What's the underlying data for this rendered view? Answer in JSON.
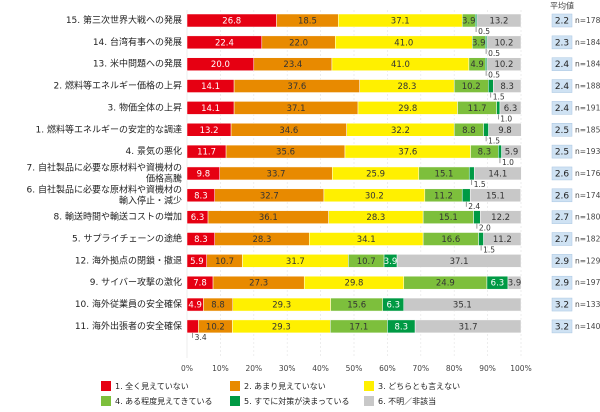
{
  "chart_data": {
    "type": "bar",
    "orientation": "horizontal-stacked-100",
    "avg_header": "平均値",
    "x_ticks": [
      "0%",
      "10%",
      "20%",
      "30%",
      "40%",
      "50%",
      "60%",
      "70%",
      "80%",
      "90%",
      "100%"
    ],
    "xlim": [
      0,
      100
    ],
    "series": [
      {
        "name": "1. 全く見えていない",
        "color": "#e60012",
        "label_color": "#ffffff"
      },
      {
        "name": "2. あまり見えていない",
        "color": "#e88a00",
        "label_color": "#333333"
      },
      {
        "name": "3. どちらとも言えない",
        "color": "#fff000",
        "label_color": "#333333"
      },
      {
        "name": "4. ある程度見えてきている",
        "color": "#7dbf3c",
        "label_color": "#333333"
      },
      {
        "name": "5. すでに対策が決まっている",
        "color": "#009a44",
        "label_color": "#ffffff"
      },
      {
        "name": "6. 不明／非該当",
        "color": "#c8c8c8",
        "label_color": "#333333"
      }
    ],
    "rows": [
      {
        "label": [
          "15. 第三次世界大戦への発展"
        ],
        "values": [
          26.8,
          18.5,
          37.1,
          3.9,
          0.5,
          13.2
        ],
        "avg": "2.2",
        "n": "n=178"
      },
      {
        "label": [
          "14. 台湾有事への発展"
        ],
        "values": [
          22.4,
          22.0,
          41.0,
          3.9,
          0.5,
          10.2
        ],
        "avg": "2.3",
        "n": "n=184"
      },
      {
        "label": [
          "13. 米中問題への発展"
        ],
        "values": [
          20.0,
          23.4,
          41.0,
          4.9,
          0.5,
          10.2
        ],
        "avg": "2.4",
        "n": "n=184"
      },
      {
        "label": [
          "2. 燃料等エネルギー価格の上昇"
        ],
        "values": [
          14.1,
          37.6,
          28.3,
          10.2,
          1.5,
          8.3
        ],
        "avg": "2.4",
        "n": "n=188"
      },
      {
        "label": [
          "3. 物価全体の上昇"
        ],
        "values": [
          14.1,
          37.1,
          29.8,
          11.7,
          1.0,
          6.3
        ],
        "avg": "2.4",
        "n": "n=191"
      },
      {
        "label": [
          "1. 燃料等エネルギーの安定的な調達"
        ],
        "values": [
          13.2,
          34.6,
          32.2,
          8.8,
          1.5,
          9.8
        ],
        "avg": "2.5",
        "n": "n=185"
      },
      {
        "label": [
          "4. 景気の悪化"
        ],
        "values": [
          11.7,
          35.6,
          37.6,
          8.3,
          1.0,
          5.9
        ],
        "avg": "2.5",
        "n": "n=193"
      },
      {
        "label": [
          "7. 自社製品に必要な原材料や資機材の",
          "価格高騰"
        ],
        "values": [
          9.8,
          33.7,
          25.9,
          15.1,
          1.5,
          14.1
        ],
        "avg": "2.6",
        "n": "n=176"
      },
      {
        "label": [
          "6. 自社製品に必要な原材料や資機材の",
          "輸入停止・減少"
        ],
        "values": [
          8.3,
          32.7,
          30.2,
          11.2,
          2.4,
          15.1
        ],
        "avg": "2.6",
        "n": "n=174"
      },
      {
        "label": [
          "8. 輸送時間や輸送コストの増加"
        ],
        "values": [
          6.3,
          36.1,
          28.3,
          15.1,
          2.0,
          12.2
        ],
        "avg": "2.7",
        "n": "n=180"
      },
      {
        "label": [
          "5. サプライチェーンの途絶"
        ],
        "values": [
          8.3,
          28.3,
          34.1,
          16.6,
          1.5,
          11.2
        ],
        "avg": "2.7",
        "n": "n=182"
      },
      {
        "label": [
          "12. 海外拠点の閉鎖・撤退"
        ],
        "values": [
          5.9,
          10.7,
          31.7,
          10.7,
          3.9,
          37.1
        ],
        "avg": "2.9",
        "n": "n=129"
      },
      {
        "label": [
          "9. サイバー攻撃の激化"
        ],
        "values": [
          7.8,
          27.3,
          29.8,
          24.9,
          6.3,
          3.9
        ],
        "avg": "2.9",
        "n": "n=197"
      },
      {
        "label": [
          "10. 海外従業員の安全確保"
        ],
        "values": [
          4.9,
          8.8,
          29.3,
          15.6,
          6.3,
          35.1
        ],
        "avg": "3.2",
        "n": "n=133"
      },
      {
        "label": [
          "11. 海外出張者の安全確保"
        ],
        "values": [
          3.4,
          10.2,
          29.3,
          17.1,
          8.3,
          31.7
        ],
        "avg": "3.2",
        "n": "n=140"
      }
    ]
  }
}
